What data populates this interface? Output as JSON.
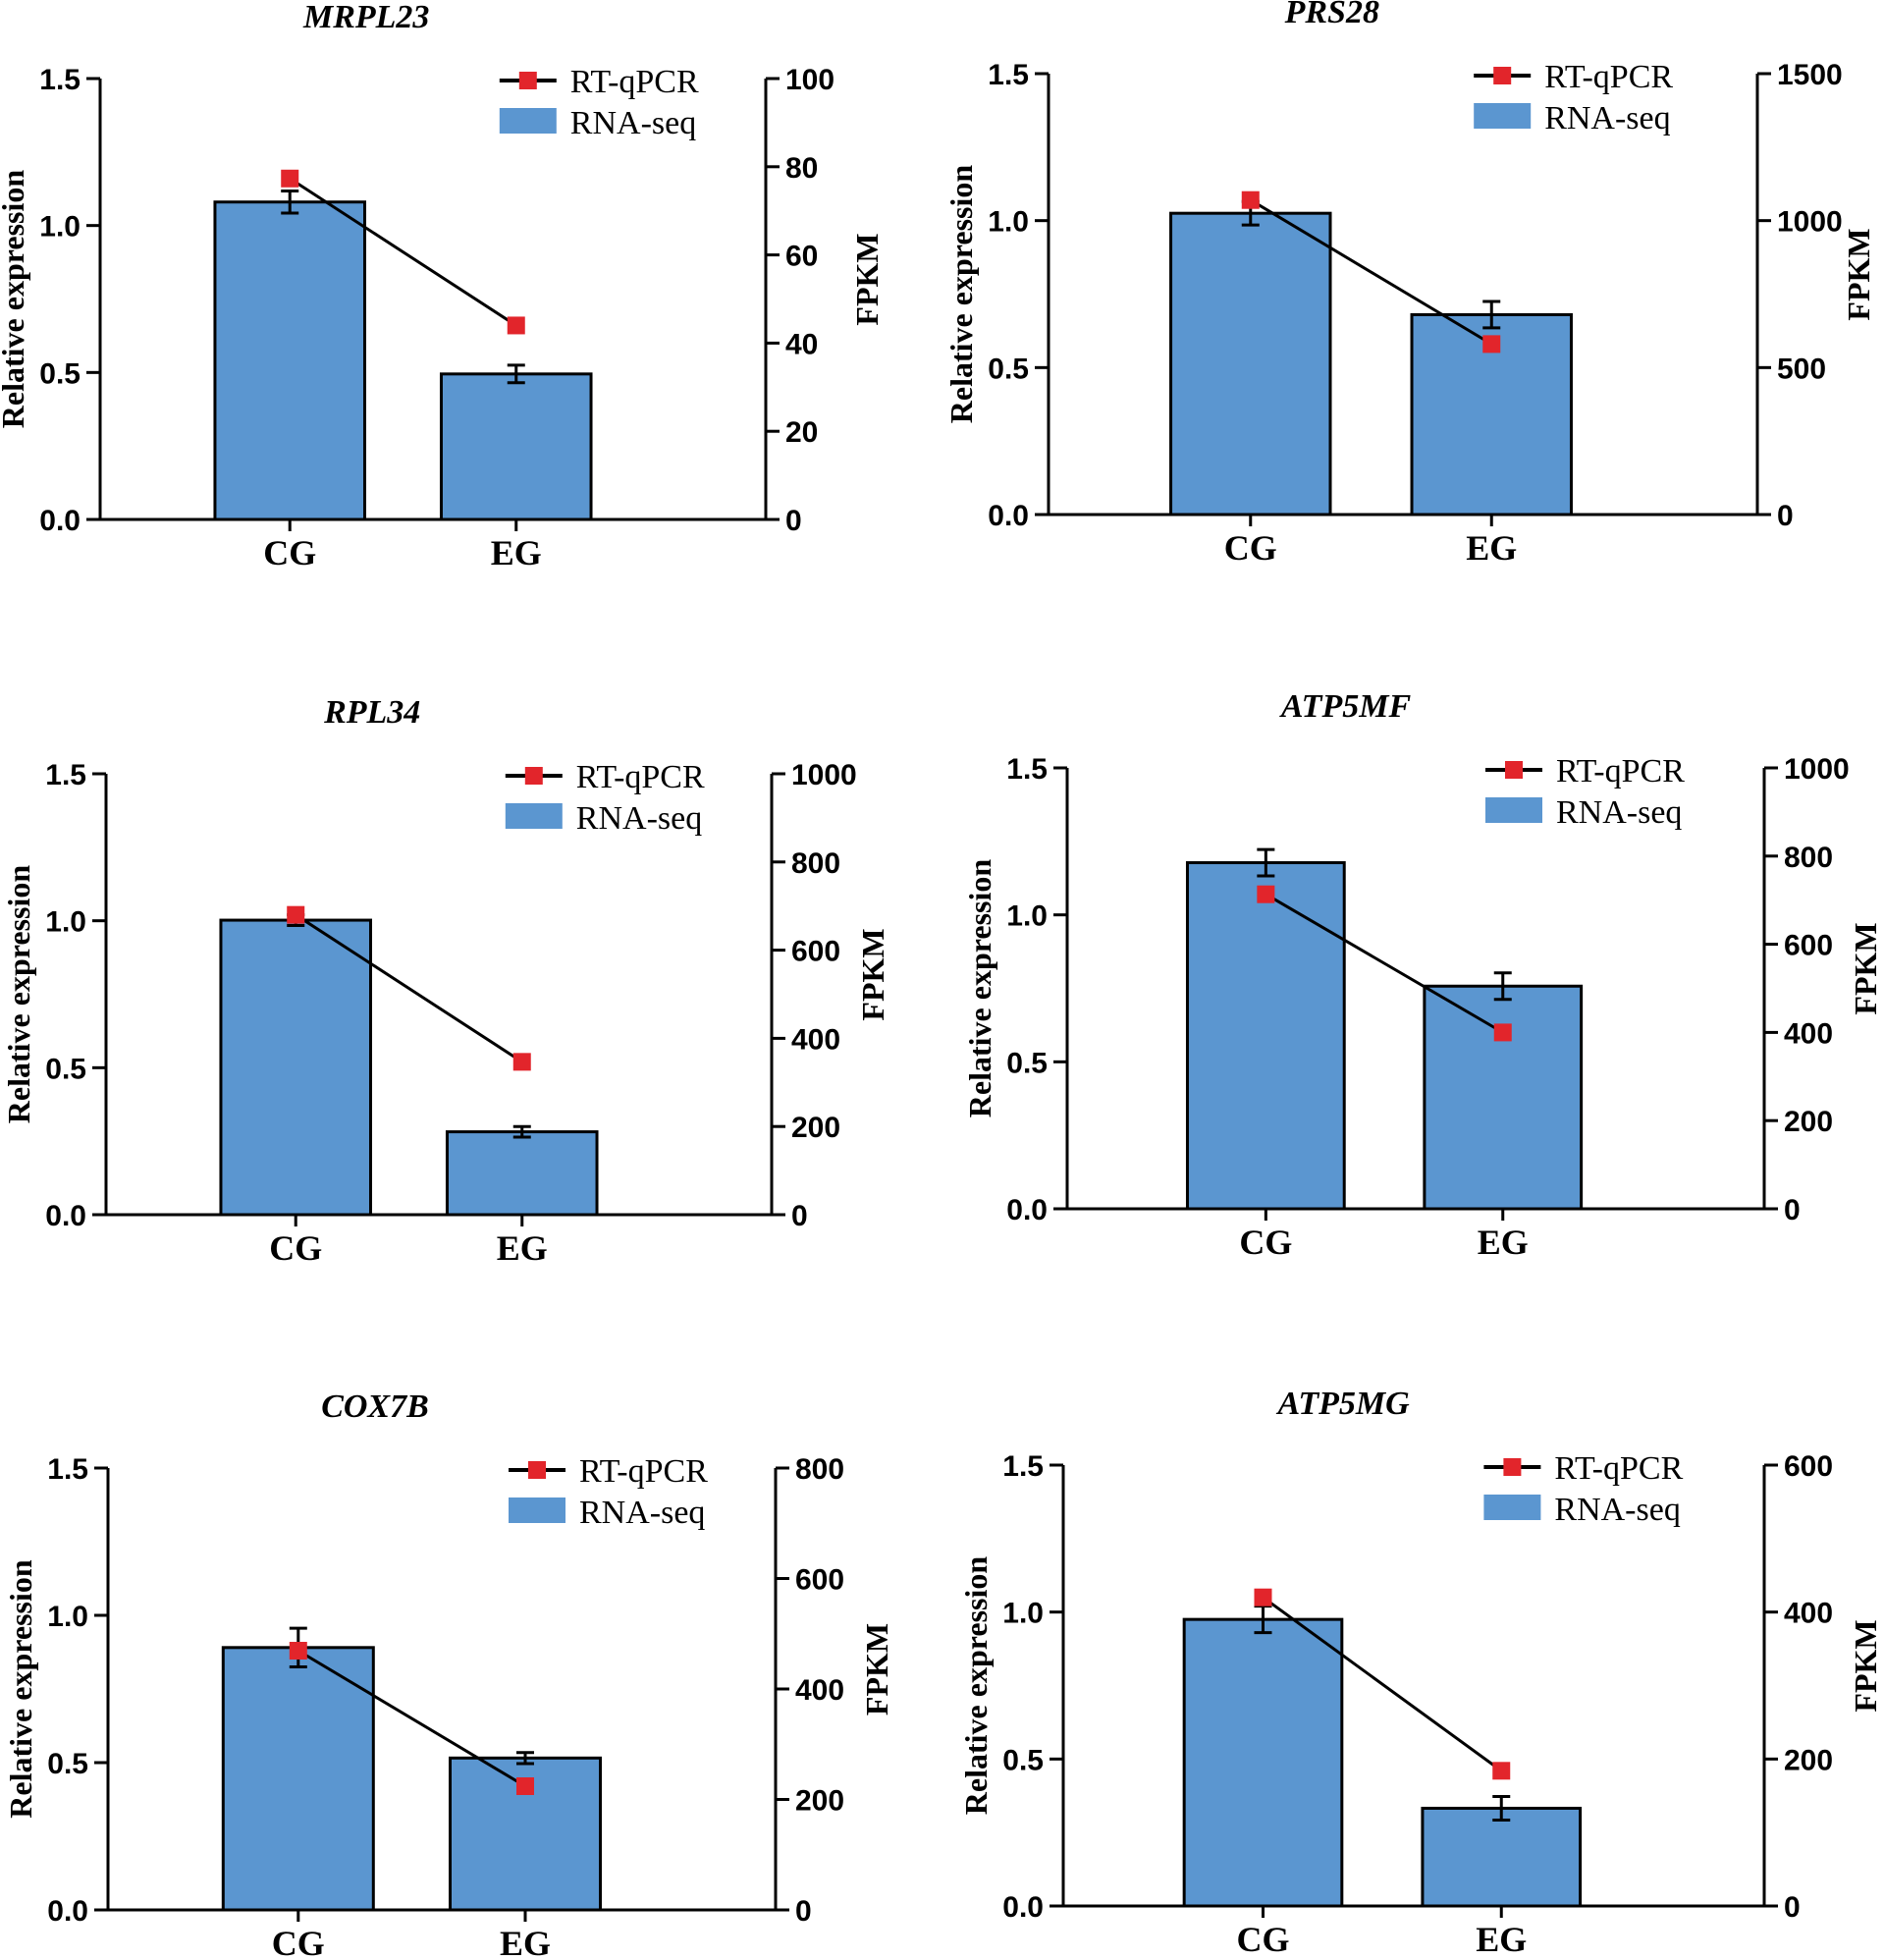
{
  "colors": {
    "bar": "#5b96d0",
    "marker": "#e2252b",
    "line": "#000000",
    "axis": "#000000"
  },
  "chart_data": [
    {
      "type": "bar",
      "title": "MRPL23",
      "categories": [
        "CG",
        "EG"
      ],
      "ylabel": "Relative expression",
      "y2label": "FPKM",
      "ylim": [
        0,
        1.5
      ],
      "yticks": [
        "0.0",
        "0.5",
        "1.0",
        "1.5"
      ],
      "y2lim": [
        0,
        100
      ],
      "y2ticks": [
        "0",
        "20",
        "40",
        "60",
        "80",
        "100"
      ],
      "series": [
        {
          "name": "RNA-seq",
          "axis": "right",
          "kind": "bar",
          "values": [
            72,
            33
          ],
          "errors": [
            2.5,
            2.0
          ]
        },
        {
          "name": "RT-qPCR",
          "axis": "left",
          "kind": "line",
          "values": [
            1.16,
            0.66
          ]
        }
      ],
      "legend": [
        "RT-qPCR",
        "RNA-seq"
      ]
    },
    {
      "type": "bar",
      "title": "PRS28",
      "categories": [
        "CG",
        "EG"
      ],
      "ylabel": "Relative expression",
      "y2label": "FPKM",
      "ylim": [
        0,
        1.5
      ],
      "yticks": [
        "0.0",
        "0.5",
        "1.0",
        "1.5"
      ],
      "y2lim": [
        0,
        1500
      ],
      "y2ticks": [
        "0",
        "500",
        "1000",
        "1500"
      ],
      "series": [
        {
          "name": "RNA-seq",
          "axis": "right",
          "kind": "bar",
          "values": [
            1025,
            680
          ],
          "errors": [
            40,
            45
          ]
        },
        {
          "name": "RT-qPCR",
          "axis": "left",
          "kind": "line",
          "values": [
            1.07,
            0.58
          ]
        }
      ],
      "legend": [
        "RT-qPCR",
        "RNA-seq"
      ]
    },
    {
      "type": "bar",
      "title": "RPL34",
      "categories": [
        "CG",
        "EG"
      ],
      "ylabel": "Relative expression",
      "y2label": "FPKM",
      "ylim": [
        0,
        1.5
      ],
      "yticks": [
        "0.0",
        "0.5",
        "1.0",
        "1.5"
      ],
      "y2lim": [
        0,
        1000
      ],
      "y2ticks": [
        "0",
        "200",
        "400",
        "600",
        "800",
        "1000"
      ],
      "series": [
        {
          "name": "RNA-seq",
          "axis": "right",
          "kind": "bar",
          "values": [
            668,
            188
          ],
          "errors": [
            12,
            12
          ]
        },
        {
          "name": "RT-qPCR",
          "axis": "left",
          "kind": "line",
          "values": [
            1.02,
            0.52
          ]
        }
      ],
      "legend": [
        "RT-qPCR",
        "RNA-seq"
      ]
    },
    {
      "type": "bar",
      "title": "ATP5MF",
      "categories": [
        "CG",
        "EG"
      ],
      "ylabel": "Relative expression",
      "y2label": "FPKM",
      "ylim": [
        0,
        1.5
      ],
      "yticks": [
        "0.0",
        "0.5",
        "1.0",
        "1.5"
      ],
      "y2lim": [
        0,
        1000
      ],
      "y2ticks": [
        "0",
        "200",
        "400",
        "600",
        "800",
        "1000"
      ],
      "series": [
        {
          "name": "RNA-seq",
          "axis": "right",
          "kind": "bar",
          "values": [
            785,
            505
          ],
          "errors": [
            30,
            30
          ]
        },
        {
          "name": "RT-qPCR",
          "axis": "left",
          "kind": "line",
          "values": [
            1.07,
            0.6
          ]
        }
      ],
      "legend": [
        "RT-qPCR",
        "RNA-seq"
      ]
    },
    {
      "type": "bar",
      "title": "COX7B",
      "categories": [
        "CG",
        "EG"
      ],
      "ylabel": "Relative expression",
      "y2label": "FPKM",
      "ylim": [
        0,
        1.5
      ],
      "yticks": [
        "0.0",
        "0.5",
        "1.0",
        "1.5"
      ],
      "y2lim": [
        0,
        800
      ],
      "y2ticks": [
        "0",
        "200",
        "400",
        "600",
        "800"
      ],
      "series": [
        {
          "name": "RNA-seq",
          "axis": "right",
          "kind": "bar",
          "values": [
            475,
            275
          ],
          "errors": [
            35,
            10
          ]
        },
        {
          "name": "RT-qPCR",
          "axis": "left",
          "kind": "line",
          "values": [
            0.88,
            0.42
          ]
        }
      ],
      "legend": [
        "RT-qPCR",
        "RNA-seq"
      ]
    },
    {
      "type": "bar",
      "title": "ATP5MG",
      "categories": [
        "CG",
        "EG"
      ],
      "ylabel": "Relative expression",
      "y2label": "FPKM",
      "ylim": [
        0,
        1.5
      ],
      "yticks": [
        "0.0",
        "0.5",
        "1.0",
        "1.5"
      ],
      "y2lim": [
        0,
        600
      ],
      "y2ticks": [
        "0",
        "200",
        "400",
        "600"
      ],
      "series": [
        {
          "name": "RNA-seq",
          "axis": "right",
          "kind": "bar",
          "values": [
            390,
            133
          ],
          "errors": [
            18,
            16
          ]
        },
        {
          "name": "RT-qPCR",
          "axis": "left",
          "kind": "line",
          "values": [
            1.05,
            0.46
          ]
        }
      ],
      "legend": [
        "RT-qPCR",
        "RNA-seq"
      ]
    }
  ]
}
